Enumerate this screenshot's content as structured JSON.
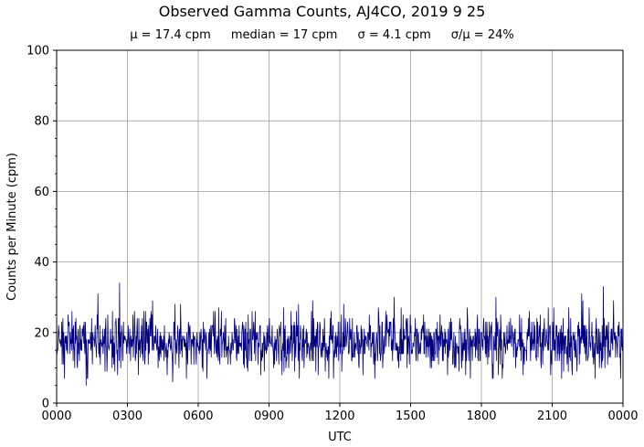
{
  "chart_data": {
    "type": "line",
    "title": "Observed Gamma Counts, AJ4CO, 2019 9 25",
    "subtitle_stats": [
      "μ = 17.4 cpm",
      "median = 17 cpm",
      "σ = 4.1 cpm",
      "σ/μ = 24%"
    ],
    "xlabel": "UTC",
    "ylabel": "Counts per Minute (cpm)",
    "x_ticks": [
      "0000",
      "0300",
      "0600",
      "0900",
      "1200",
      "1500",
      "1800",
      "2100",
      "0000"
    ],
    "x_range_minutes": [
      0,
      1440
    ],
    "y_ticks": [
      0,
      20,
      40,
      60,
      80,
      100
    ],
    "ylim": [
      0,
      100
    ],
    "grid": true,
    "series": [
      {
        "color": "#000080",
        "sample_interval_minutes": 1,
        "mean": 17.4,
        "median": 17,
        "std": 4.1,
        "min": 5,
        "max": 34,
        "notable_peaks": [
          {
            "time": "0240",
            "value": 34
          },
          {
            "time": "2310",
            "value": 33
          },
          {
            "time": "0145",
            "value": 31
          },
          {
            "time": "2215",
            "value": 31
          },
          {
            "time": "1418",
            "value": 30
          },
          {
            "time": "1837",
            "value": 30
          }
        ],
        "notable_lows": [
          {
            "time": "0115",
            "value": 5
          },
          {
            "time": "0455",
            "value": 6
          },
          {
            "time": "0530",
            "value": 7
          }
        ]
      }
    ]
  }
}
